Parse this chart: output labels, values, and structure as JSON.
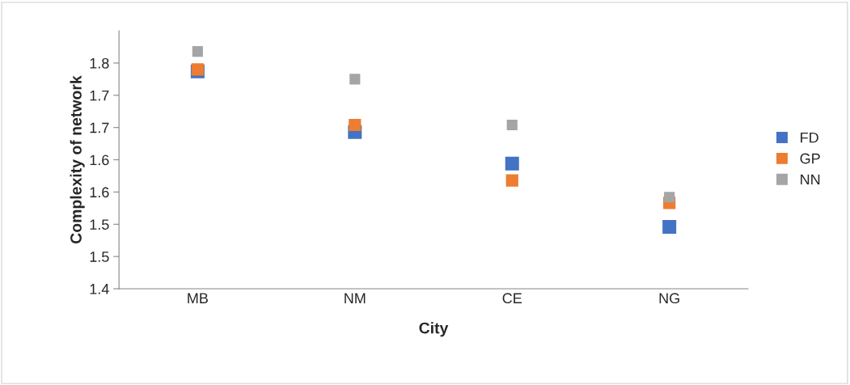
{
  "chart_data": {
    "type": "scatter",
    "xlabel": "City",
    "ylabel": "Complexity of network",
    "categories": [
      "MB",
      "NM",
      "CE",
      "NG"
    ],
    "series": [
      {
        "name": "FD",
        "color": "#4472c4",
        "values": [
          1.737,
          1.643,
          1.594,
          1.496
        ]
      },
      {
        "name": "GP",
        "color": "#ed7d31",
        "values": [
          1.74,
          1.654,
          1.568,
          1.533
        ]
      },
      {
        "name": "NN",
        "color": "#a5a5a5",
        "values": [
          1.768,
          1.725,
          1.654,
          1.542
        ]
      }
    ],
    "ylim": [
      1.4,
      1.8
    ],
    "yticks": [
      1.4,
      {
        "value": 1.45,
        "label": "1.5"
      },
      1.5,
      {
        "value": 1.55,
        "label": "1.6"
      },
      1.6,
      {
        "value": 1.65,
        "label": "1.7"
      },
      1.7,
      {
        "value": 1.75,
        "label": "1.8"
      }
    ],
    "marker": "square",
    "grid": false,
    "legend": "right"
  }
}
